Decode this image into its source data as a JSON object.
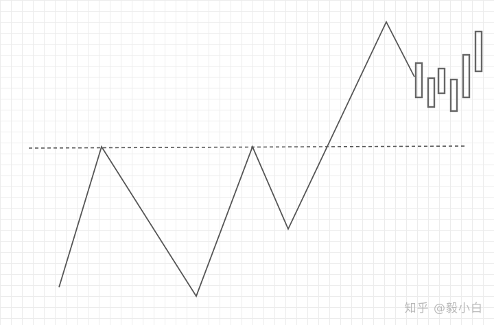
{
  "watermark": "知乎 @毅小白",
  "colors": {
    "line": "#555555",
    "dashed": "#555555",
    "candle": "#666666",
    "grid": "#ececec"
  }
}
